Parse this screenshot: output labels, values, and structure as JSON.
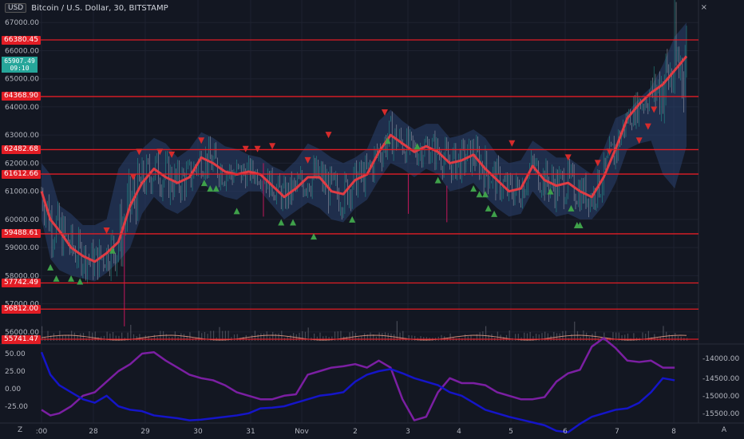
{
  "header": {
    "currency": "USD",
    "symbol_title": "Bitcoin / U.S. Dollar, 30, BITSTAMP",
    "close_glyph": "×"
  },
  "price_box": {
    "line1": "65907.49",
    "line2": "09:10"
  },
  "h_levels": [
    "66380.45",
    "64368.90",
    "62482.68",
    "61612.66",
    "59488.61",
    "57742.49",
    "56812.00",
    "55741.47"
  ],
  "h_level_values": [
    66380.45,
    64368.9,
    62482.68,
    61612.66,
    59488.61,
    57742.49,
    56812.0,
    55741.47
  ],
  "price_ticks": [
    "67000.00",
    "66000.00",
    "65000.00",
    "64000.00",
    "63000.00",
    "62000.00",
    "61000.00",
    "60000.00",
    "59000.00",
    "58000.00",
    "57000.00",
    "56000.00"
  ],
  "price_tick_values": [
    67000,
    66000,
    65000,
    64000,
    63000,
    62000,
    61000,
    60000,
    59000,
    58000,
    57000,
    56000
  ],
  "x_ticks": [
    ":00",
    "28",
    "29",
    "30",
    "31",
    "Nov",
    "2",
    "3",
    "4",
    "5",
    "6",
    "7",
    "8"
  ],
  "osc_left_ticks": [
    "50.00",
    "25.00",
    "0.00",
    "-25.00"
  ],
  "osc_left_values": [
    50,
    25,
    0,
    -25
  ],
  "osc_right_ticks": [
    "-14000.00",
    "-14500.00",
    "-15000.00",
    "-15500.00"
  ],
  "osc_right_values": [
    -14000,
    -14500,
    -15000,
    -15500
  ],
  "buttons": {
    "z": "Z",
    "a": "A"
  },
  "colors": {
    "background": "#131722",
    "level_line": "#e21d25",
    "ma_line": "#e03c44",
    "band": "#2a4270",
    "candle_up": "#26a69a",
    "candle_down": "#b0b3bd",
    "up_marker": "#3fa14a",
    "down_marker": "#d62b2b",
    "osc_purple": "#7b1fa2",
    "osc_blue": "#1515c8"
  },
  "chart_data": {
    "type": "line",
    "price_range": [
      55600,
      67800
    ],
    "ma_series": [
      [
        0,
        61000
      ],
      [
        6,
        60000
      ],
      [
        12,
        59600
      ],
      [
        20,
        59000
      ],
      [
        28,
        58700
      ],
      [
        36,
        58500
      ],
      [
        44,
        58800
      ],
      [
        52,
        59200
      ],
      [
        60,
        60500
      ],
      [
        68,
        61300
      ],
      [
        76,
        61800
      ],
      [
        84,
        61500
      ],
      [
        92,
        61300
      ],
      [
        100,
        61500
      ],
      [
        108,
        62200
      ],
      [
        116,
        62000
      ],
      [
        124,
        61700
      ],
      [
        132,
        61600
      ],
      [
        140,
        61700
      ],
      [
        148,
        61600
      ],
      [
        156,
        61200
      ],
      [
        164,
        60800
      ],
      [
        172,
        61100
      ],
      [
        180,
        61500
      ],
      [
        188,
        61500
      ],
      [
        196,
        61000
      ],
      [
        204,
        60900
      ],
      [
        212,
        61400
      ],
      [
        220,
        61600
      ],
      [
        228,
        62400
      ],
      [
        236,
        63000
      ],
      [
        244,
        62700
      ],
      [
        252,
        62400
      ],
      [
        260,
        62600
      ],
      [
        268,
        62400
      ],
      [
        276,
        62000
      ],
      [
        284,
        62100
      ],
      [
        292,
        62300
      ],
      [
        300,
        61800
      ],
      [
        308,
        61400
      ],
      [
        316,
        61000
      ],
      [
        324,
        61100
      ],
      [
        332,
        61900
      ],
      [
        340,
        61400
      ],
      [
        348,
        61200
      ],
      [
        356,
        61300
      ],
      [
        364,
        61000
      ],
      [
        372,
        60800
      ],
      [
        380,
        61500
      ],
      [
        388,
        62500
      ],
      [
        396,
        63600
      ],
      [
        404,
        64100
      ],
      [
        412,
        64500
      ],
      [
        420,
        64800
      ],
      [
        428,
        65300
      ],
      [
        436,
        65800
      ]
    ],
    "upper_band": [
      [
        0,
        62000
      ],
      [
        6,
        61600
      ],
      [
        12,
        60500
      ],
      [
        20,
        60200
      ],
      [
        28,
        59800
      ],
      [
        36,
        59800
      ],
      [
        44,
        60000
      ],
      [
        52,
        61800
      ],
      [
        60,
        62400
      ],
      [
        68,
        62500
      ],
      [
        76,
        62900
      ],
      [
        84,
        62700
      ],
      [
        92,
        62200
      ],
      [
        100,
        62500
      ],
      [
        108,
        63100
      ],
      [
        116,
        62900
      ],
      [
        124,
        62600
      ],
      [
        132,
        62500
      ],
      [
        140,
        62300
      ],
      [
        148,
        62200
      ],
      [
        156,
        61900
      ],
      [
        164,
        61700
      ],
      [
        172,
        62100
      ],
      [
        180,
        62700
      ],
      [
        188,
        62500
      ],
      [
        196,
        62200
      ],
      [
        204,
        62000
      ],
      [
        212,
        62200
      ],
      [
        220,
        62500
      ],
      [
        228,
        63500
      ],
      [
        236,
        63900
      ],
      [
        244,
        63500
      ],
      [
        252,
        63200
      ],
      [
        260,
        63400
      ],
      [
        268,
        63400
      ],
      [
        276,
        62900
      ],
      [
        284,
        63000
      ],
      [
        292,
        63200
      ],
      [
        300,
        62900
      ],
      [
        308,
        62300
      ],
      [
        316,
        62000
      ],
      [
        324,
        62100
      ],
      [
        332,
        62800
      ],
      [
        340,
        62500
      ],
      [
        348,
        62200
      ],
      [
        356,
        62200
      ],
      [
        364,
        61900
      ],
      [
        372,
        61600
      ],
      [
        380,
        62500
      ],
      [
        388,
        63600
      ],
      [
        396,
        63800
      ],
      [
        404,
        64300
      ],
      [
        412,
        64700
      ],
      [
        420,
        65500
      ],
      [
        428,
        66500
      ],
      [
        436,
        67000
      ]
    ],
    "lower_band": [
      [
        0,
        60000
      ],
      [
        6,
        58600
      ],
      [
        12,
        58200
      ],
      [
        20,
        58000
      ],
      [
        28,
        57900
      ],
      [
        36,
        57800
      ],
      [
        44,
        58100
      ],
      [
        52,
        58500
      ],
      [
        60,
        59000
      ],
      [
        68,
        60200
      ],
      [
        76,
        60800
      ],
      [
        84,
        60400
      ],
      [
        92,
        60200
      ],
      [
        100,
        60500
      ],
      [
        108,
        61300
      ],
      [
        116,
        61000
      ],
      [
        124,
        60800
      ],
      [
        132,
        60700
      ],
      [
        140,
        61000
      ],
      [
        148,
        61000
      ],
      [
        156,
        60500
      ],
      [
        164,
        60000
      ],
      [
        172,
        60300
      ],
      [
        180,
        60600
      ],
      [
        188,
        60400
      ],
      [
        196,
        60000
      ],
      [
        204,
        59900
      ],
      [
        212,
        60400
      ],
      [
        220,
        60700
      ],
      [
        228,
        61400
      ],
      [
        236,
        62000
      ],
      [
        244,
        61800
      ],
      [
        252,
        61500
      ],
      [
        260,
        61800
      ],
      [
        268,
        61600
      ],
      [
        276,
        61000
      ],
      [
        284,
        61100
      ],
      [
        292,
        61300
      ],
      [
        300,
        60800
      ],
      [
        308,
        60400
      ],
      [
        316,
        60100
      ],
      [
        324,
        60200
      ],
      [
        332,
        61000
      ],
      [
        340,
        60500
      ],
      [
        348,
        60100
      ],
      [
        356,
        60200
      ],
      [
        364,
        60000
      ],
      [
        372,
        60000
      ],
      [
        380,
        60500
      ],
      [
        388,
        61300
      ],
      [
        396,
        62500
      ],
      [
        404,
        62700
      ],
      [
        412,
        62800
      ],
      [
        420,
        61600
      ],
      [
        428,
        61100
      ],
      [
        436,
        62600
      ]
    ],
    "osc_purple": [
      [
        0,
        -30
      ],
      [
        6,
        -38
      ],
      [
        12,
        -35
      ],
      [
        20,
        -25
      ],
      [
        28,
        -10
      ],
      [
        36,
        -5
      ],
      [
        44,
        10
      ],
      [
        52,
        25
      ],
      [
        60,
        35
      ],
      [
        68,
        50
      ],
      [
        76,
        52
      ],
      [
        84,
        40
      ],
      [
        92,
        30
      ],
      [
        100,
        20
      ],
      [
        108,
        15
      ],
      [
        116,
        12
      ],
      [
        124,
        5
      ],
      [
        132,
        -5
      ],
      [
        140,
        -10
      ],
      [
        148,
        -15
      ],
      [
        156,
        -15
      ],
      [
        164,
        -10
      ],
      [
        172,
        -8
      ],
      [
        180,
        20
      ],
      [
        188,
        25
      ],
      [
        196,
        30
      ],
      [
        204,
        32
      ],
      [
        212,
        35
      ],
      [
        220,
        30
      ],
      [
        228,
        40
      ],
      [
        236,
        30
      ],
      [
        244,
        -15
      ],
      [
        252,
        -45
      ],
      [
        260,
        -40
      ],
      [
        268,
        -5
      ],
      [
        276,
        15
      ],
      [
        284,
        8
      ],
      [
        292,
        8
      ],
      [
        300,
        5
      ],
      [
        308,
        -5
      ],
      [
        316,
        -10
      ],
      [
        324,
        -15
      ],
      [
        332,
        -15
      ],
      [
        340,
        -12
      ],
      [
        348,
        10
      ],
      [
        356,
        22
      ],
      [
        364,
        27
      ],
      [
        372,
        60
      ],
      [
        380,
        72
      ],
      [
        388,
        58
      ],
      [
        396,
        40
      ],
      [
        404,
        38
      ],
      [
        412,
        40
      ],
      [
        420,
        30
      ],
      [
        428,
        30
      ]
    ],
    "osc_blue": [
      [
        0,
        52
      ],
      [
        6,
        20
      ],
      [
        12,
        5
      ],
      [
        20,
        -5
      ],
      [
        28,
        -15
      ],
      [
        36,
        -20
      ],
      [
        44,
        -10
      ],
      [
        52,
        -25
      ],
      [
        60,
        -30
      ],
      [
        68,
        -32
      ],
      [
        76,
        -38
      ],
      [
        84,
        -40
      ],
      [
        92,
        -42
      ],
      [
        100,
        -45
      ],
      [
        108,
        -44
      ],
      [
        116,
        -42
      ],
      [
        124,
        -40
      ],
      [
        132,
        -38
      ],
      [
        140,
        -35
      ],
      [
        148,
        -28
      ],
      [
        156,
        -27
      ],
      [
        164,
        -25
      ],
      [
        172,
        -20
      ],
      [
        180,
        -15
      ],
      [
        188,
        -10
      ],
      [
        196,
        -8
      ],
      [
        204,
        -5
      ],
      [
        212,
        10
      ],
      [
        220,
        20
      ],
      [
        228,
        25
      ],
      [
        236,
        28
      ],
      [
        244,
        22
      ],
      [
        252,
        15
      ],
      [
        260,
        10
      ],
      [
        268,
        5
      ],
      [
        276,
        -5
      ],
      [
        284,
        -10
      ],
      [
        292,
        -20
      ],
      [
        300,
        -30
      ],
      [
        308,
        -35
      ],
      [
        316,
        -40
      ],
      [
        324,
        -44
      ],
      [
        332,
        -48
      ],
      [
        340,
        -52
      ],
      [
        348,
        -60
      ],
      [
        356,
        -62
      ],
      [
        364,
        -50
      ],
      [
        372,
        -40
      ],
      [
        380,
        -35
      ],
      [
        388,
        -30
      ],
      [
        396,
        -28
      ],
      [
        404,
        -20
      ],
      [
        412,
        -5
      ],
      [
        420,
        15
      ],
      [
        428,
        12
      ]
    ],
    "up_markers": [
      [
        6,
        58300
      ],
      [
        10,
        57900
      ],
      [
        20,
        57900
      ],
      [
        26,
        57800
      ],
      [
        48,
        58900
      ],
      [
        110,
        61300
      ],
      [
        114,
        61100
      ],
      [
        118,
        61100
      ],
      [
        132,
        60300
      ],
      [
        162,
        59900
      ],
      [
        170,
        59900
      ],
      [
        184,
        59400
      ],
      [
        210,
        60000
      ],
      [
        234,
        62800
      ],
      [
        254,
        62600
      ],
      [
        268,
        61400
      ],
      [
        292,
        61100
      ],
      [
        296,
        60900
      ],
      [
        300,
        60900
      ],
      [
        302,
        60400
      ],
      [
        306,
        60200
      ],
      [
        344,
        61000
      ],
      [
        358,
        60400
      ],
      [
        362,
        59800
      ],
      [
        364,
        59800
      ]
    ],
    "down_markers": [
      [
        44,
        59600
      ],
      [
        62,
        61500
      ],
      [
        66,
        62400
      ],
      [
        80,
        62400
      ],
      [
        88,
        62300
      ],
      [
        108,
        62800
      ],
      [
        138,
        62500
      ],
      [
        146,
        62500
      ],
      [
        156,
        62600
      ],
      [
        180,
        62100
      ],
      [
        194,
        63000
      ],
      [
        232,
        63800
      ],
      [
        318,
        62700
      ],
      [
        356,
        62200
      ],
      [
        376,
        62000
      ],
      [
        384,
        62400
      ],
      [
        404,
        62800
      ],
      [
        410,
        63300
      ],
      [
        414,
        63900
      ]
    ]
  }
}
